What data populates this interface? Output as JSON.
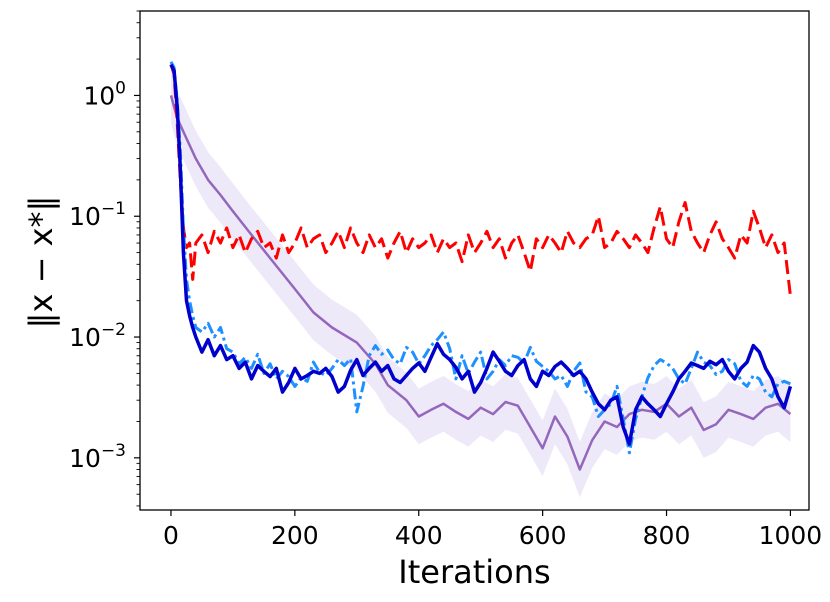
{
  "chart_data": {
    "type": "line",
    "title": "",
    "xlabel": "Iterations",
    "ylabel": "‖x − x*‖",
    "xlim": [
      -50,
      1030
    ],
    "ylim": [
      0.00037,
      5.0
    ],
    "yscale": "log",
    "grid": false,
    "x_ticks": [
      {
        "value": 0,
        "label": "0"
      },
      {
        "value": 200,
        "label": "200"
      },
      {
        "value": 400,
        "label": "400"
      },
      {
        "value": 600,
        "label": "600"
      },
      {
        "value": 800,
        "label": "800"
      },
      {
        "value": 1000,
        "label": "1000"
      }
    ],
    "y_ticks": [
      {
        "value": 1,
        "base": "10",
        "exp": "0"
      },
      {
        "value": 0.1,
        "base": "10",
        "exp": "−1"
      },
      {
        "value": 0.01,
        "base": "10",
        "exp": "−2"
      },
      {
        "value": 0.001,
        "base": "10",
        "exp": "−3"
      }
    ],
    "series": [
      {
        "name": "purple-solid",
        "color": "#9467bd",
        "dash": "none",
        "width": 2.5,
        "band_color": "#d9cff0",
        "x": [
          0,
          10,
          20,
          40,
          60,
          80,
          100,
          130,
          160,
          200,
          230,
          260,
          300,
          330,
          350,
          380,
          400,
          420,
          440,
          460,
          480,
          500,
          520,
          540,
          560,
          580,
          600,
          620,
          640,
          660,
          680,
          700,
          720,
          740,
          760,
          780,
          800,
          820,
          840,
          860,
          880,
          900,
          920,
          940,
          960,
          980,
          1000
        ],
        "y": [
          1.0,
          0.65,
          0.5,
          0.3,
          0.2,
          0.15,
          0.11,
          0.07,
          0.045,
          0.025,
          0.016,
          0.012,
          0.009,
          0.006,
          0.004,
          0.003,
          0.0022,
          0.0025,
          0.0028,
          0.0024,
          0.0021,
          0.0026,
          0.0023,
          0.0029,
          0.0027,
          0.0018,
          0.0012,
          0.0022,
          0.0015,
          0.0008,
          0.0014,
          0.002,
          0.0018,
          0.0023,
          0.0025,
          0.0024,
          0.0028,
          0.0022,
          0.0026,
          0.0017,
          0.0019,
          0.0025,
          0.0023,
          0.0021,
          0.0026,
          0.0028,
          0.0023
        ]
      },
      {
        "name": "red-dashed",
        "color": "#ff0000",
        "dash": "14 6",
        "width": 3,
        "x": [
          0,
          5,
          10,
          15,
          20,
          25,
          30,
          35,
          40,
          50,
          60,
          70,
          80,
          90,
          100,
          110,
          120,
          130,
          140,
          150,
          160,
          170,
          180,
          190,
          200,
          210,
          220,
          230,
          240,
          250,
          260,
          270,
          280,
          290,
          300,
          310,
          320,
          330,
          340,
          350,
          360,
          370,
          380,
          390,
          400,
          410,
          420,
          430,
          440,
          450,
          460,
          470,
          480,
          490,
          500,
          510,
          520,
          530,
          540,
          550,
          560,
          570,
          580,
          590,
          600,
          610,
          620,
          630,
          640,
          650,
          660,
          670,
          680,
          690,
          700,
          710,
          720,
          730,
          740,
          750,
          760,
          770,
          780,
          790,
          800,
          810,
          820,
          830,
          840,
          850,
          860,
          870,
          880,
          890,
          900,
          910,
          920,
          930,
          940,
          950,
          960,
          970,
          980,
          990,
          1000
        ],
        "y": [
          1.8,
          1.5,
          0.6,
          0.2,
          0.08,
          0.055,
          0.06,
          0.03,
          0.06,
          0.07,
          0.05,
          0.075,
          0.06,
          0.08,
          0.055,
          0.07,
          0.05,
          0.065,
          0.075,
          0.055,
          0.06,
          0.045,
          0.07,
          0.05,
          0.06,
          0.08,
          0.055,
          0.065,
          0.07,
          0.05,
          0.06,
          0.075,
          0.055,
          0.08,
          0.06,
          0.05,
          0.07,
          0.055,
          0.065,
          0.045,
          0.06,
          0.075,
          0.05,
          0.065,
          0.055,
          0.06,
          0.07,
          0.05,
          0.065,
          0.055,
          0.06,
          0.042,
          0.07,
          0.05,
          0.06,
          0.075,
          0.055,
          0.065,
          0.045,
          0.06,
          0.07,
          0.05,
          0.035,
          0.065,
          0.055,
          0.07,
          0.06,
          0.05,
          0.075,
          0.06,
          0.055,
          0.065,
          0.07,
          0.1,
          0.055,
          0.06,
          0.075,
          0.065,
          0.055,
          0.07,
          0.06,
          0.05,
          0.08,
          0.12,
          0.065,
          0.055,
          0.09,
          0.13,
          0.075,
          0.06,
          0.05,
          0.07,
          0.09,
          0.065,
          0.055,
          0.045,
          0.07,
          0.06,
          0.11,
          0.08,
          0.055,
          0.07,
          0.05,
          0.06,
          0.022
        ]
      },
      {
        "name": "dodgerblue-dashdot",
        "color": "#1e90ff",
        "dash": "11 4 3 4",
        "width": 3,
        "x": [
          0,
          5,
          10,
          15,
          20,
          25,
          30,
          35,
          40,
          50,
          60,
          70,
          80,
          90,
          100,
          110,
          120,
          130,
          140,
          150,
          160,
          170,
          180,
          190,
          200,
          210,
          220,
          230,
          240,
          250,
          260,
          270,
          280,
          290,
          300,
          310,
          320,
          330,
          340,
          350,
          360,
          370,
          380,
          390,
          400,
          410,
          420,
          430,
          440,
          450,
          460,
          470,
          480,
          490,
          500,
          510,
          520,
          530,
          540,
          550,
          560,
          570,
          580,
          590,
          600,
          610,
          620,
          630,
          640,
          650,
          660,
          670,
          680,
          690,
          700,
          710,
          720,
          730,
          740,
          750,
          760,
          770,
          780,
          790,
          800,
          810,
          820,
          830,
          840,
          850,
          860,
          870,
          880,
          890,
          900,
          910,
          920,
          930,
          940,
          950,
          960,
          970,
          980,
          990,
          1000
        ],
        "y": [
          1.9,
          1.7,
          0.9,
          0.35,
          0.08,
          0.03,
          0.02,
          0.015,
          0.012,
          0.011,
          0.013,
          0.01,
          0.012,
          0.008,
          0.0075,
          0.006,
          0.0068,
          0.0055,
          0.0072,
          0.005,
          0.006,
          0.0045,
          0.0052,
          0.0047,
          0.0039,
          0.0046,
          0.0043,
          0.0062,
          0.0051,
          0.0048,
          0.0055,
          0.0065,
          0.0058,
          0.0066,
          0.0024,
          0.0039,
          0.007,
          0.0085,
          0.0072,
          0.0078,
          0.0065,
          0.006,
          0.0082,
          0.0075,
          0.006,
          0.007,
          0.0085,
          0.0095,
          0.011,
          0.008,
          0.0045,
          0.007,
          0.005,
          0.0062,
          0.0075,
          0.0045,
          0.0052,
          0.0065,
          0.0058,
          0.007,
          0.0068,
          0.0061,
          0.0082,
          0.0063,
          0.0057,
          0.0052,
          0.0045,
          0.0048,
          0.0039,
          0.0052,
          0.0061,
          0.0035,
          0.0032,
          0.0022,
          0.0025,
          0.0028,
          0.0039,
          0.0021,
          0.0011,
          0.0021,
          0.0032,
          0.0046,
          0.0058,
          0.0065,
          0.0061,
          0.0055,
          0.0045,
          0.0041,
          0.0055,
          0.0075,
          0.0062,
          0.0058,
          0.0049,
          0.0052,
          0.0065,
          0.006,
          0.0043,
          0.0039,
          0.0048,
          0.0045,
          0.0035,
          0.0032,
          0.0041,
          0.0043,
          0.0041
        ]
      },
      {
        "name": "mediumblue-solid",
        "color": "#0000cd",
        "dash": "none",
        "width": 3.5,
        "x": [
          0,
          5,
          10,
          15,
          20,
          25,
          30,
          35,
          40,
          50,
          60,
          70,
          80,
          90,
          100,
          110,
          120,
          130,
          140,
          150,
          160,
          170,
          180,
          190,
          200,
          210,
          220,
          230,
          240,
          250,
          260,
          270,
          280,
          290,
          300,
          310,
          320,
          330,
          340,
          350,
          360,
          370,
          380,
          390,
          400,
          410,
          420,
          430,
          440,
          450,
          460,
          470,
          480,
          490,
          500,
          510,
          520,
          530,
          540,
          550,
          560,
          570,
          580,
          590,
          600,
          610,
          620,
          630,
          640,
          650,
          660,
          670,
          680,
          690,
          700,
          710,
          720,
          730,
          740,
          750,
          760,
          770,
          780,
          790,
          800,
          810,
          820,
          830,
          840,
          850,
          860,
          870,
          880,
          890,
          900,
          910,
          920,
          930,
          940,
          950,
          960,
          970,
          980,
          990,
          1000
        ],
        "y": [
          1.8,
          1.6,
          0.8,
          0.25,
          0.05,
          0.02,
          0.015,
          0.012,
          0.01,
          0.0075,
          0.0095,
          0.007,
          0.0085,
          0.0065,
          0.007,
          0.0055,
          0.0062,
          0.0045,
          0.0058,
          0.0052,
          0.0047,
          0.0055,
          0.0035,
          0.0042,
          0.0055,
          0.0045,
          0.0048,
          0.0052,
          0.005,
          0.0055,
          0.0047,
          0.0035,
          0.0039,
          0.0053,
          0.0065,
          0.0048,
          0.0055,
          0.0062,
          0.0052,
          0.0058,
          0.0045,
          0.0042,
          0.0048,
          0.0055,
          0.0061,
          0.0052,
          0.0068,
          0.0088,
          0.0072,
          0.0065,
          0.0056,
          0.0045,
          0.0052,
          0.0035,
          0.0042,
          0.0055,
          0.0075,
          0.0063,
          0.0052,
          0.0048,
          0.0058,
          0.0065,
          0.0045,
          0.0039,
          0.0052,
          0.0048,
          0.0057,
          0.0062,
          0.0055,
          0.0048,
          0.0052,
          0.0045,
          0.0035,
          0.0028,
          0.0025,
          0.003,
          0.0032,
          0.0018,
          0.0013,
          0.0025,
          0.0032,
          0.0028,
          0.0025,
          0.0022,
          0.0028,
          0.0035,
          0.0045,
          0.0052,
          0.0061,
          0.0058,
          0.0055,
          0.0063,
          0.0059,
          0.0065,
          0.0052,
          0.0045,
          0.0055,
          0.0062,
          0.0085,
          0.0075,
          0.0055,
          0.0045,
          0.0032,
          0.0026,
          0.0039
        ]
      }
    ]
  }
}
